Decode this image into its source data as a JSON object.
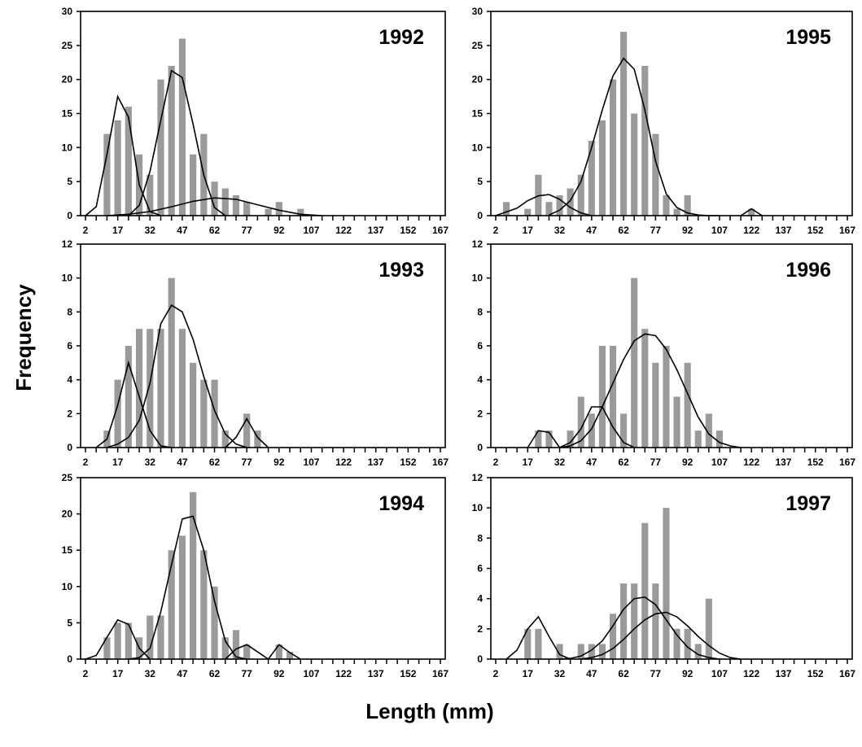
{
  "figure": {
    "ylabel": "Frequency",
    "xlabel": "Length (mm)",
    "xtick_labels": [
      "2",
      "17",
      "32",
      "47",
      "62",
      "77",
      "92",
      "107",
      "122",
      "137",
      "152",
      "167"
    ]
  },
  "chart_data": [
    {
      "type": "bar",
      "panel": "1992",
      "x_bins": [
        2,
        7,
        12,
        17,
        22,
        27,
        32,
        37,
        42,
        47,
        52,
        57,
        62,
        67,
        72,
        77,
        82,
        87,
        92,
        97,
        102,
        107,
        112,
        117,
        122,
        127,
        132,
        137,
        142,
        147,
        152,
        157,
        162,
        167
      ],
      "xlim": [
        2,
        167
      ],
      "ylim": [
        0,
        30
      ],
      "yticks": [
        0,
        5,
        10,
        15,
        20,
        25,
        30
      ],
      "series": [
        {
          "kind": "bars",
          "x": [
            12,
            17,
            22,
            27,
            32,
            37,
            42,
            47,
            52,
            57,
            62,
            67,
            72,
            77,
            82,
            87,
            92,
            97,
            102
          ],
          "values": [
            12,
            14,
            16,
            9,
            6,
            20,
            22,
            26,
            9,
            12,
            5,
            4,
            3,
            2,
            0,
            1,
            2,
            0,
            1
          ]
        },
        {
          "kind": "curve",
          "x": [
            2,
            7,
            12,
            17,
            22,
            27,
            32,
            37
          ],
          "values": [
            0,
            1.3,
            9,
            17.5,
            14.5,
            4.5,
            0.6,
            0
          ]
        },
        {
          "kind": "curve",
          "x": [
            22,
            27,
            32,
            37,
            42,
            47,
            52,
            57,
            62,
            67
          ],
          "values": [
            0,
            1.5,
            6.5,
            14,
            21.3,
            20.3,
            13.5,
            6,
            1.2,
            0
          ]
        },
        {
          "kind": "curve",
          "x": [
            12,
            22,
            32,
            42,
            52,
            62,
            72,
            82,
            92,
            102,
            112
          ],
          "values": [
            0,
            0.2,
            0.6,
            1.3,
            2.1,
            2.6,
            2.4,
            1.6,
            0.8,
            0.2,
            0
          ]
        }
      ]
    },
    {
      "type": "bar",
      "panel": "1995",
      "x_bins": [
        2,
        7,
        12,
        17,
        22,
        27,
        32,
        37,
        42,
        47,
        52,
        57,
        62,
        67,
        72,
        77,
        82,
        87,
        92,
        97,
        102,
        107,
        112,
        117,
        122,
        127,
        132,
        137,
        142,
        147,
        152,
        157,
        162,
        167
      ],
      "xlim": [
        2,
        167
      ],
      "ylim": [
        0,
        30
      ],
      "yticks": [
        0,
        5,
        10,
        15,
        20,
        25,
        30
      ],
      "series": [
        {
          "kind": "bars",
          "x": [
            7,
            12,
            17,
            22,
            27,
            32,
            37,
            42,
            47,
            52,
            57,
            62,
            67,
            72,
            77,
            82,
            87,
            92,
            97,
            102,
            107,
            112,
            117,
            122
          ],
          "values": [
            2,
            0,
            1,
            6,
            2,
            3,
            4,
            6,
            11,
            14,
            20,
            27,
            15,
            22,
            12,
            3,
            1,
            3,
            0,
            0,
            0,
            0,
            0,
            1
          ]
        },
        {
          "kind": "curve",
          "x": [
            2,
            12,
            17,
            22,
            27,
            32,
            37,
            42,
            47
          ],
          "values": [
            0,
            1.1,
            2.2,
            2.9,
            3.1,
            2.4,
            1.2,
            0.4,
            0
          ]
        },
        {
          "kind": "curve",
          "x": [
            27,
            32,
            37,
            42,
            47,
            52,
            57,
            62,
            67,
            72,
            77,
            82,
            87,
            92,
            97,
            102,
            107
          ],
          "values": [
            0.1,
            0.8,
            2.2,
            5,
            10,
            15.5,
            20.5,
            23.1,
            21.5,
            15.5,
            8,
            3.2,
            1.2,
            0.4,
            0.1,
            0,
            0
          ]
        },
        {
          "kind": "curve",
          "x": [
            117,
            122,
            127
          ],
          "values": [
            0,
            1,
            0
          ]
        }
      ]
    },
    {
      "type": "bar",
      "panel": "1993",
      "x_bins": [
        2,
        7,
        12,
        17,
        22,
        27,
        32,
        37,
        42,
        47,
        52,
        57,
        62,
        67,
        72,
        77,
        82,
        87,
        92,
        97,
        102,
        107,
        112,
        117,
        122,
        127,
        132,
        137,
        142,
        147,
        152,
        157,
        162,
        167
      ],
      "xlim": [
        2,
        167
      ],
      "ylim": [
        0,
        12
      ],
      "yticks": [
        0,
        2,
        4,
        6,
        8,
        10,
        12
      ],
      "series": [
        {
          "kind": "bars",
          "x": [
            12,
            17,
            22,
            27,
            32,
            37,
            42,
            47,
            52,
            57,
            62,
            67,
            72,
            77,
            82
          ],
          "values": [
            1,
            4,
            6,
            7,
            7,
            7,
            10,
            7,
            5,
            4,
            4,
            1,
            0,
            2,
            1
          ]
        },
        {
          "kind": "curve",
          "x": [
            7,
            12,
            17,
            22,
            27,
            32,
            37,
            42
          ],
          "values": [
            0,
            0.5,
            2.5,
            5,
            3,
            1,
            0.1,
            0
          ]
        },
        {
          "kind": "curve",
          "x": [
            12,
            17,
            22,
            27,
            32,
            37,
            42,
            47,
            52,
            57,
            62,
            67,
            72,
            77
          ],
          "values": [
            0,
            0.2,
            0.6,
            1.6,
            3.8,
            7.3,
            8.4,
            8,
            6.4,
            4.2,
            2.2,
            0.8,
            0.2,
            0
          ]
        },
        {
          "kind": "curve",
          "x": [
            67,
            72,
            77,
            82,
            87
          ],
          "values": [
            0,
            0.6,
            1.7,
            0.6,
            0
          ]
        }
      ]
    },
    {
      "type": "bar",
      "panel": "1996",
      "x_bins": [
        2,
        7,
        12,
        17,
        22,
        27,
        32,
        37,
        42,
        47,
        52,
        57,
        62,
        67,
        72,
        77,
        82,
        87,
        92,
        97,
        102,
        107,
        112,
        117,
        122,
        127,
        132,
        137,
        142,
        147,
        152,
        157,
        162,
        167
      ],
      "xlim": [
        2,
        167
      ],
      "ylim": [
        0,
        12
      ],
      "yticks": [
        0,
        2,
        4,
        6,
        8,
        10,
        12
      ],
      "series": [
        {
          "kind": "bars",
          "x": [
            22,
            27,
            32,
            37,
            42,
            47,
            52,
            57,
            62,
            67,
            72,
            77,
            82,
            87,
            92,
            97,
            102,
            107
          ],
          "values": [
            1,
            1,
            0,
            1,
            3,
            2,
            6,
            6,
            2,
            10,
            7,
            5,
            6,
            3,
            5,
            1,
            2,
            1
          ]
        },
        {
          "kind": "curve",
          "x": [
            17,
            22,
            27,
            32
          ],
          "values": [
            0,
            1,
            0.9,
            0
          ]
        },
        {
          "kind": "curve",
          "x": [
            32,
            37,
            42,
            47,
            52,
            57,
            62,
            67
          ],
          "values": [
            0,
            0.3,
            1.1,
            2.4,
            2.4,
            1.2,
            0.3,
            0
          ]
        },
        {
          "kind": "curve",
          "x": [
            32,
            37,
            42,
            47,
            52,
            57,
            62,
            67,
            72,
            77,
            82,
            87,
            92,
            97,
            102,
            107,
            112,
            117
          ],
          "values": [
            0,
            0.1,
            0.4,
            1.1,
            2.4,
            3.8,
            5.2,
            6.3,
            6.7,
            6.6,
            5.8,
            4.6,
            3.2,
            1.8,
            0.8,
            0.3,
            0.1,
            0
          ]
        }
      ]
    },
    {
      "type": "bar",
      "panel": "1994",
      "x_bins": [
        2,
        7,
        12,
        17,
        22,
        27,
        32,
        37,
        42,
        47,
        52,
        57,
        62,
        67,
        72,
        77,
        82,
        87,
        92,
        97,
        102,
        107,
        112,
        117,
        122,
        127,
        132,
        137,
        142,
        147,
        152,
        157,
        162,
        167
      ],
      "xlim": [
        2,
        167
      ],
      "ylim": [
        0,
        25
      ],
      "yticks": [
        0,
        5,
        10,
        15,
        20,
        25
      ],
      "series": [
        {
          "kind": "bars",
          "x": [
            12,
            17,
            22,
            27,
            32,
            37,
            42,
            47,
            52,
            57,
            62,
            67,
            72,
            77,
            82,
            87,
            92,
            97
          ],
          "values": [
            3,
            5,
            5,
            3,
            6,
            6,
            15,
            17,
            23,
            15,
            10,
            3,
            4,
            2,
            0,
            0,
            2,
            1
          ]
        },
        {
          "kind": "curve",
          "x": [
            2,
            7,
            12,
            17,
            22,
            27,
            32
          ],
          "values": [
            0,
            0.5,
            3,
            5.4,
            4.8,
            1.5,
            0
          ]
        },
        {
          "kind": "curve",
          "x": [
            22,
            27,
            32,
            37,
            42,
            47,
            52,
            57,
            62,
            67,
            72,
            77
          ],
          "values": [
            0,
            0.2,
            1.5,
            6.5,
            13,
            19.3,
            19.7,
            15,
            8,
            2.5,
            0.3,
            0
          ]
        },
        {
          "kind": "curve",
          "x": [
            67,
            72,
            77,
            82,
            87
          ],
          "values": [
            0,
            1.4,
            2,
            1,
            0
          ]
        },
        {
          "kind": "curve",
          "x": [
            87,
            92,
            97,
            102
          ],
          "values": [
            0,
            2,
            0.9,
            0
          ]
        }
      ]
    },
    {
      "type": "bar",
      "panel": "1997",
      "x_bins": [
        2,
        7,
        12,
        17,
        22,
        27,
        32,
        37,
        42,
        47,
        52,
        57,
        62,
        67,
        72,
        77,
        82,
        87,
        92,
        97,
        102,
        107,
        112,
        117,
        122,
        127,
        132,
        137,
        142,
        147,
        152,
        157,
        162,
        167
      ],
      "xlim": [
        2,
        167
      ],
      "ylim": [
        0,
        12
      ],
      "yticks": [
        0,
        2,
        4,
        6,
        8,
        10,
        12
      ],
      "series": [
        {
          "kind": "bars",
          "x": [
            17,
            22,
            27,
            32,
            37,
            42,
            47,
            52,
            57,
            62,
            67,
            72,
            77,
            82,
            87,
            92,
            97,
            102
          ],
          "values": [
            2,
            2,
            0,
            1,
            0,
            1,
            1,
            1,
            3,
            5,
            5,
            9,
            5,
            10,
            2,
            2,
            1,
            4
          ]
        },
        {
          "kind": "curve",
          "x": [
            7,
            12,
            17,
            22,
            27,
            32,
            37
          ],
          "values": [
            0,
            0.6,
            2,
            2.8,
            1.5,
            0.3,
            0
          ]
        },
        {
          "kind": "curve",
          "x": [
            32,
            37,
            42,
            47,
            52,
            57,
            62,
            67,
            72,
            77,
            82,
            87,
            92,
            97,
            102,
            107
          ],
          "values": [
            0,
            0.05,
            0.2,
            0.6,
            1.2,
            2.2,
            3.3,
            4,
            4.1,
            3.6,
            2.6,
            1.6,
            0.8,
            0.3,
            0.1,
            0
          ]
        },
        {
          "kind": "curve",
          "x": [
            42,
            47,
            52,
            57,
            62,
            67,
            72,
            77,
            82,
            87,
            92,
            97,
            102,
            107,
            112,
            117
          ],
          "values": [
            0,
            0.1,
            0.3,
            0.7,
            1.3,
            2,
            2.6,
            3,
            3.1,
            2.8,
            2.2,
            1.5,
            0.9,
            0.4,
            0.1,
            0
          ]
        }
      ]
    }
  ]
}
